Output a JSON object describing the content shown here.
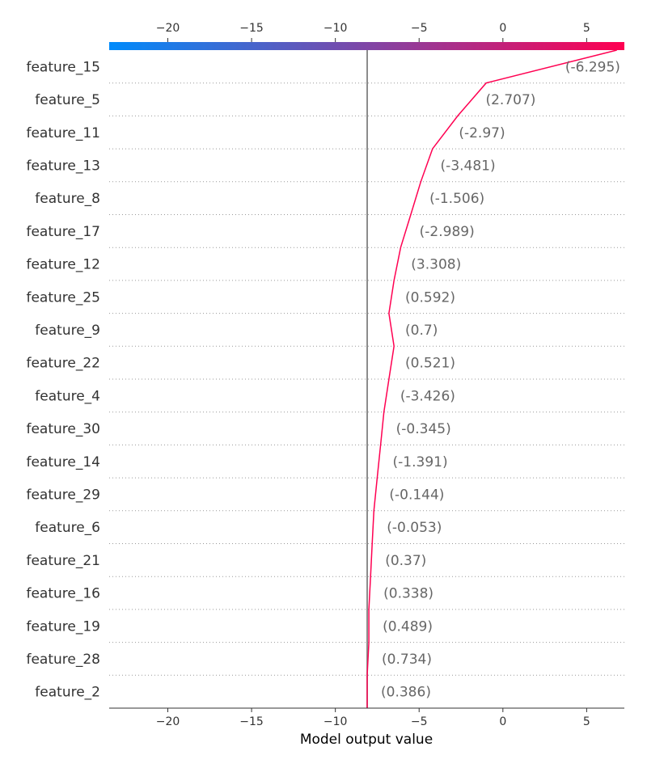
{
  "chart_data": {
    "type": "line",
    "xlabel": "Model output value",
    "xlim": [
      -23.5,
      7.25
    ],
    "xticks": [
      -20,
      -15,
      -10,
      -5,
      0,
      5
    ],
    "xtick_labels": [
      "−20",
      "−15",
      "−10",
      "−5",
      "0",
      "5"
    ],
    "base_value": -8.1,
    "colorbar": {
      "from": "#008bfb",
      "to": "#ff0051",
      "range": [
        -23.5,
        7.25
      ]
    },
    "line_color": "#ff0051",
    "features": [
      {
        "name": "feature_15",
        "value_label": "(-6.295)",
        "value": -6.295,
        "x_start": -1.0,
        "x_end": 6.8
      },
      {
        "name": "feature_5",
        "value_label": "(2.707)",
        "value": 2.707,
        "x_start": -2.7,
        "x_end": -1.0
      },
      {
        "name": "feature_11",
        "value_label": "(-2.97)",
        "value": -2.97,
        "x_start": -4.2,
        "x_end": -2.7
      },
      {
        "name": "feature_13",
        "value_label": "(-3.481)",
        "value": -3.481,
        "x_start": -4.9,
        "x_end": -4.2
      },
      {
        "name": "feature_8",
        "value_label": "(-1.506)",
        "value": -1.506,
        "x_start": -5.5,
        "x_end": -4.9
      },
      {
        "name": "feature_17",
        "value_label": "(-2.989)",
        "value": -2.989,
        "x_start": -6.1,
        "x_end": -5.5
      },
      {
        "name": "feature_12",
        "value_label": "(3.308)",
        "value": 3.308,
        "x_start": -6.5,
        "x_end": -6.1
      },
      {
        "name": "feature_25",
        "value_label": "(0.592)",
        "value": 0.592,
        "x_start": -6.8,
        "x_end": -6.5
      },
      {
        "name": "feature_9",
        "value_label": "(0.7)",
        "value": 0.7,
        "x_start": -6.5,
        "x_end": -6.8
      },
      {
        "name": "feature_22",
        "value_label": "(0.521)",
        "value": 0.521,
        "x_start": -6.8,
        "x_end": -6.5
      },
      {
        "name": "feature_4",
        "value_label": "(-3.426)",
        "value": -3.426,
        "x_start": -7.1,
        "x_end": -6.8
      },
      {
        "name": "feature_30",
        "value_label": "(-0.345)",
        "value": -0.345,
        "x_start": -7.3,
        "x_end": -7.1
      },
      {
        "name": "feature_14",
        "value_label": "(-1.391)",
        "value": -1.391,
        "x_start": -7.5,
        "x_end": -7.3
      },
      {
        "name": "feature_29",
        "value_label": "(-0.144)",
        "value": -0.144,
        "x_start": -7.7,
        "x_end": -7.5
      },
      {
        "name": "feature_6",
        "value_label": "(-0.053)",
        "value": -0.053,
        "x_start": -7.8,
        "x_end": -7.7
      },
      {
        "name": "feature_21",
        "value_label": "(0.37)",
        "value": 0.37,
        "x_start": -7.9,
        "x_end": -7.8
      },
      {
        "name": "feature_16",
        "value_label": "(0.338)",
        "value": 0.338,
        "x_start": -8.0,
        "x_end": -7.9
      },
      {
        "name": "feature_19",
        "value_label": "(0.489)",
        "value": 0.489,
        "x_start": -8.0,
        "x_end": -8.0
      },
      {
        "name": "feature_28",
        "value_label": "(0.734)",
        "value": 0.734,
        "x_start": -8.1,
        "x_end": -8.0
      },
      {
        "name": "feature_2",
        "value_label": "(0.386)",
        "value": 0.386,
        "x_start": -8.1,
        "x_end": -8.1
      }
    ]
  }
}
